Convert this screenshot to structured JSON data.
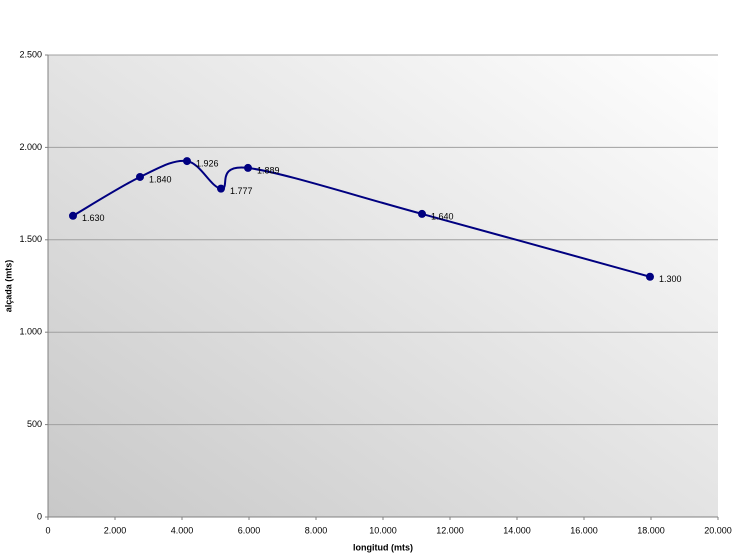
{
  "chart_data": {
    "type": "line",
    "x_label": "longitud (mts)",
    "y_label": "alçada (mts)",
    "x": [
      746,
      2746,
      4149,
      5164,
      5970,
      11164,
      17970
    ],
    "series": [
      {
        "color": "#000080",
        "values": [
          1630,
          1840,
          1926,
          1777,
          1889,
          1640,
          1300
        ],
        "value_labels": [
          "1.630",
          "1.840",
          "1.926",
          "1.777",
          "1.889",
          "1.640",
          "1.300"
        ]
      }
    ],
    "xlim": [
      0,
      20000
    ],
    "xticks": [
      0,
      {
        "value": 2000,
        "label": "2.000"
      },
      {
        "value": 4000,
        "label": "4.000"
      },
      {
        "value": 6000,
        "label": "6.000"
      },
      {
        "value": 8000,
        "label": "8.000"
      },
      {
        "value": 10000,
        "label": "10.000"
      },
      {
        "value": 12000,
        "label": "12.000"
      },
      {
        "value": 14000,
        "label": "14.000"
      },
      {
        "value": 16000,
        "label": "16.000"
      },
      {
        "value": 18000,
        "label": "18.000"
      },
      {
        "value": 20000,
        "label": "20.000"
      }
    ],
    "ylim": [
      0,
      2500
    ],
    "yticks": [
      0,
      {
        "value": 500,
        "label": "500"
      },
      {
        "value": 1000,
        "label": "1.000"
      },
      {
        "value": 1500,
        "label": "1.500"
      },
      {
        "value": 2000,
        "label": "2.000"
      },
      {
        "value": 2500,
        "label": "2.500"
      }
    ],
    "grid": true,
    "smooth": true
  }
}
